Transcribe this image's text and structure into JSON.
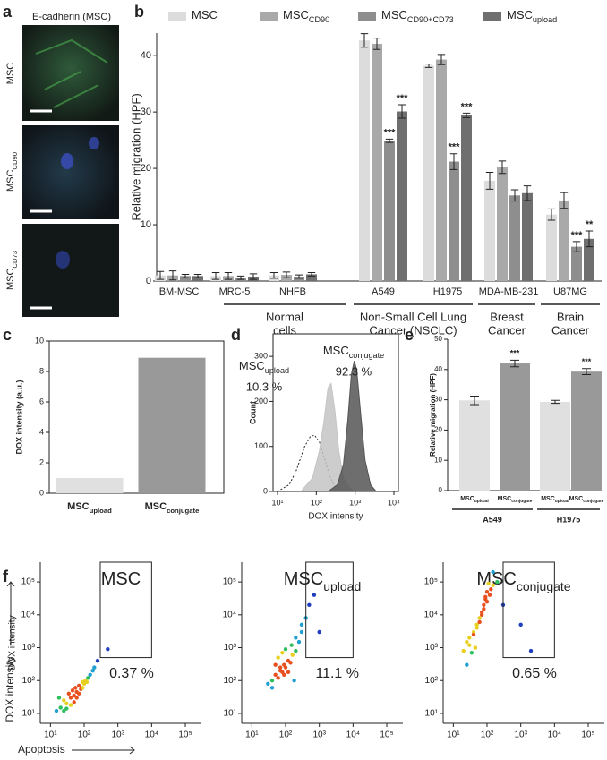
{
  "panel_a": {
    "panel": "a",
    "title": "E-cadherin (MSC)",
    "images": [
      [
        "MSC"
      ],
      [
        "MSC",
        "CD90"
      ],
      [
        "MSC",
        "CD73"
      ]
    ]
  },
  "chart_data": [
    {
      "panel": "b",
      "type": "bar",
      "ylabel": "Relative migration (HPF)",
      "categories": [
        "BM-MSC",
        "MRC-5",
        "NHFB",
        "A549",
        "H1975",
        "MDA-MB-231",
        "U87MG"
      ],
      "groups": [
        [
          "Normal",
          "cells"
        ],
        [
          "Non-Small Cell Lung",
          "Cancer (NSCLC)"
        ],
        [
          "Breast",
          "Cancer"
        ],
        [
          "Brain",
          "Cancer"
        ]
      ],
      "series": [
        {
          "name": [
            "MSC"
          ],
          "color": "#dcdcdc",
          "values": [
            1,
            0.9,
            1,
            42.7,
            38.2,
            17.8,
            11.8
          ],
          "errors": [
            0.7,
            0.6,
            0.5,
            1.2,
            0.3,
            1.5,
            1.0
          ]
        },
        {
          "name": [
            "MSC",
            "CD90"
          ],
          "color": "#a9a9a9",
          "values": [
            1,
            0.9,
            1.1,
            42.1,
            39.3,
            20.2,
            14.3
          ],
          "errors": [
            0.8,
            0.6,
            0.5,
            1.0,
            0.9,
            1.1,
            1.4
          ]
        },
        {
          "name": [
            "MSC",
            "CD90+CD73"
          ],
          "color": "#8e8e8e",
          "values": [
            0.9,
            0.6,
            0.8,
            24.9,
            21.2,
            15.2,
            6.1
          ],
          "errors": [
            0.3,
            0.3,
            0.3,
            0.3,
            1.4,
            1.0,
            0.9
          ],
          "significance": [
            null,
            null,
            null,
            "***",
            "***",
            null,
            "***"
          ]
        },
        {
          "name": [
            "MSC",
            "upload"
          ],
          "color": "#6f6f6f",
          "values": [
            0.9,
            0.8,
            1.2,
            30.1,
            29.4,
            15.6,
            7.5
          ],
          "errors": [
            0.3,
            0.5,
            0.3,
            1.2,
            0.4,
            1.3,
            1.4
          ],
          "significance": [
            null,
            null,
            null,
            "***",
            "***",
            null,
            "**"
          ]
        }
      ],
      "ylim": [
        0,
        44
      ],
      "yticks": [
        0,
        10,
        20,
        30,
        40
      ]
    },
    {
      "panel": "c",
      "type": "bar",
      "ylabel": "DOX intensity (a.u.)",
      "categories": [
        [
          "MSC",
          "upload"
        ],
        [
          "MSC",
          "conjugate"
        ]
      ],
      "values": [
        1,
        8.9
      ],
      "colors": [
        "#e0e0e0",
        "#999999"
      ],
      "ylim": [
        0,
        10
      ],
      "yticks": [
        0,
        2,
        4,
        6,
        8,
        10
      ]
    },
    {
      "panel": "d",
      "type": "area",
      "xlabel": "DOX intensity",
      "ylabel": "Count",
      "log_x": true,
      "xlim": [
        10,
        10000
      ],
      "xticks": [
        {
          "value": 10,
          "label": "10¹"
        },
        {
          "value": 100,
          "label": "10²"
        },
        {
          "value": 1000,
          "label": "10³"
        },
        {
          "value": 10000,
          "label": "10⁴"
        }
      ],
      "ylim": [
        0,
        350
      ],
      "yticks": [
        0,
        100,
        200,
        300
      ],
      "series": [
        {
          "color": "#333333",
          "dashed": true,
          "x": [
            10,
            20,
            30,
            50,
            70,
            90,
            120,
            160,
            220,
            300,
            400
          ],
          "y": [
            0,
            15,
            45,
            100,
            122,
            125,
            110,
            75,
            35,
            10,
            0
          ]
        },
        {
          "name": [
            "MSC",
            "upload"
          ],
          "label": "10.3 %",
          "color": "#c4c4c4",
          "x": [
            40,
            80,
            120,
            160,
            200,
            240,
            300,
            380,
            500,
            700,
            1000
          ],
          "y": [
            0,
            30,
            90,
            160,
            230,
            240,
            180,
            90,
            30,
            8,
            0
          ]
        },
        {
          "name": [
            "MSC",
            "conjugate"
          ],
          "label": "92.3 %",
          "color": "#555555",
          "x": [
            200,
            350,
            500,
            650,
            800,
            950,
            1100,
            1400,
            1800,
            2500,
            3500
          ],
          "y": [
            0,
            15,
            60,
            160,
            260,
            290,
            270,
            170,
            70,
            15,
            0
          ]
        }
      ]
    },
    {
      "panel": "e",
      "type": "bar",
      "ylabel": "Relative migration (HPF)",
      "categories": [
        [
          "MSC",
          "upload"
        ],
        [
          "MSC",
          "conjugate"
        ],
        [
          "MSC",
          "upload"
        ],
        [
          "MSC",
          "conjugate"
        ]
      ],
      "groups": [
        [
          "A549"
        ],
        [
          "H1975"
        ]
      ],
      "values": [
        29.8,
        42,
        29.3,
        39.3
      ],
      "errors": [
        1.4,
        1.1,
        0.5,
        1.0
      ],
      "significance": [
        null,
        "***",
        null,
        "***"
      ],
      "colors": [
        "#e0e0e0",
        "#999999",
        "#e0e0e0",
        "#999999"
      ],
      "ylim": [
        0,
        50
      ],
      "yticks": [
        0,
        10,
        20,
        30,
        40,
        50
      ]
    },
    {
      "panel": "f",
      "type": "scatter",
      "title": [
        "MSC"
      ],
      "xlabel": "Apoptosis",
      "ylabel": "DOX intensity",
      "log_x": true,
      "log_y": true,
      "xlim": [
        5,
        300000
      ],
      "ylim": [
        5,
        400000
      ],
      "xticks": [
        {
          "value": 10,
          "label": "10¹"
        },
        {
          "value": 100,
          "label": "10²"
        },
        {
          "value": 1000,
          "label": "10³"
        },
        {
          "value": 10000,
          "label": "10⁴"
        },
        {
          "value": 100000,
          "label": "10⁵"
        }
      ],
      "yticks": [
        {
          "value": 10,
          "label": "10¹"
        },
        {
          "value": 100,
          "label": "10²"
        },
        {
          "value": 1000,
          "label": "10³"
        },
        {
          "value": 10000,
          "label": "10⁴"
        },
        {
          "value": 100000,
          "label": "10⁵"
        }
      ],
      "gate_x": [
        300,
        10000
      ],
      "gate_y": [
        500,
        400000
      ],
      "gate_label": "0.37 %",
      "x": [
        20,
        25,
        30,
        35,
        40,
        45,
        50,
        55,
        60,
        70,
        80,
        90,
        100,
        110,
        130,
        150,
        180,
        200,
        25,
        30,
        40,
        50,
        60,
        70,
        90,
        120,
        15,
        18,
        500,
        250
      ],
      "y": [
        15,
        25,
        20,
        40,
        30,
        50,
        35,
        60,
        45,
        70,
        55,
        90,
        80,
        100,
        120,
        150,
        200,
        250,
        12,
        14,
        18,
        22,
        30,
        40,
        60,
        90,
        12,
        30,
        900,
        400
      ]
    },
    {
      "type": "scatter",
      "title": [
        "MSC",
        "upload"
      ],
      "log_x": true,
      "log_y": true,
      "xlim": [
        5,
        300000
      ],
      "ylim": [
        5,
        400000
      ],
      "xticks": [
        {
          "value": 10,
          "label": "10¹"
        },
        {
          "value": 100,
          "label": "10²"
        },
        {
          "value": 1000,
          "label": "10³"
        },
        {
          "value": 10000,
          "label": "10⁴"
        },
        {
          "value": 100000,
          "label": "10⁵"
        }
      ],
      "yticks": [
        {
          "value": 10,
          "label": "10¹"
        },
        {
          "value": 100,
          "label": "10²"
        },
        {
          "value": 1000,
          "label": "10³"
        },
        {
          "value": 10000,
          "label": "10⁴"
        },
        {
          "value": 100000,
          "label": "10⁵"
        }
      ],
      "gate_x": [
        400,
        10000
      ],
      "gate_y": [
        500,
        400000
      ],
      "gate_label": "11.1 %",
      "x": [
        30,
        40,
        50,
        60,
        70,
        80,
        90,
        100,
        120,
        140,
        160,
        200,
        250,
        300,
        400,
        60,
        80,
        100,
        150,
        200,
        300,
        500,
        700,
        40,
        50,
        70,
        90,
        120,
        180,
        1000
      ],
      "y": [
        80,
        100,
        150,
        120,
        200,
        180,
        300,
        250,
        400,
        350,
        600,
        800,
        1500,
        3000,
        8000,
        500,
        700,
        900,
        1200,
        2000,
        5000,
        20000,
        40000,
        60,
        300,
        250,
        150,
        180,
        100,
        3000
      ]
    },
    {
      "type": "scatter",
      "title": [
        "MSC",
        "conjugate"
      ],
      "log_x": true,
      "log_y": true,
      "xlim": [
        5,
        300000
      ],
      "ylim": [
        5,
        400000
      ],
      "xticks": [
        {
          "value": 10,
          "label": "10¹"
        },
        {
          "value": 100,
          "label": "10²"
        },
        {
          "value": 1000,
          "label": "10³"
        },
        {
          "value": 10000,
          "label": "10⁴"
        },
        {
          "value": 100000,
          "label": "10⁵"
        }
      ],
      "yticks": [
        {
          "value": 10,
          "label": "10¹"
        },
        {
          "value": 100,
          "label": "10²"
        },
        {
          "value": 1000,
          "label": "10³"
        },
        {
          "value": 10000,
          "label": "10⁴"
        },
        {
          "value": 100000,
          "label": "10⁵"
        }
      ],
      "gate_x": [
        300,
        10000
      ],
      "gate_y": [
        500,
        400000
      ],
      "gate_label": "0.65 %",
      "x": [
        20,
        25,
        30,
        40,
        50,
        60,
        70,
        80,
        90,
        100,
        120,
        150,
        200,
        30,
        40,
        60,
        80,
        100,
        130,
        50,
        70,
        90,
        110,
        25,
        35,
        45,
        300,
        1000,
        2000,
        150
      ],
      "y": [
        800,
        1500,
        2000,
        3000,
        5000,
        8000,
        10000,
        20000,
        30000,
        50000,
        40000,
        80000,
        100000,
        1200,
        2500,
        6000,
        15000,
        25000,
        60000,
        4000,
        12000,
        35000,
        90000,
        300,
        700,
        1000,
        20000,
        5000,
        800,
        200000
      ]
    }
  ]
}
